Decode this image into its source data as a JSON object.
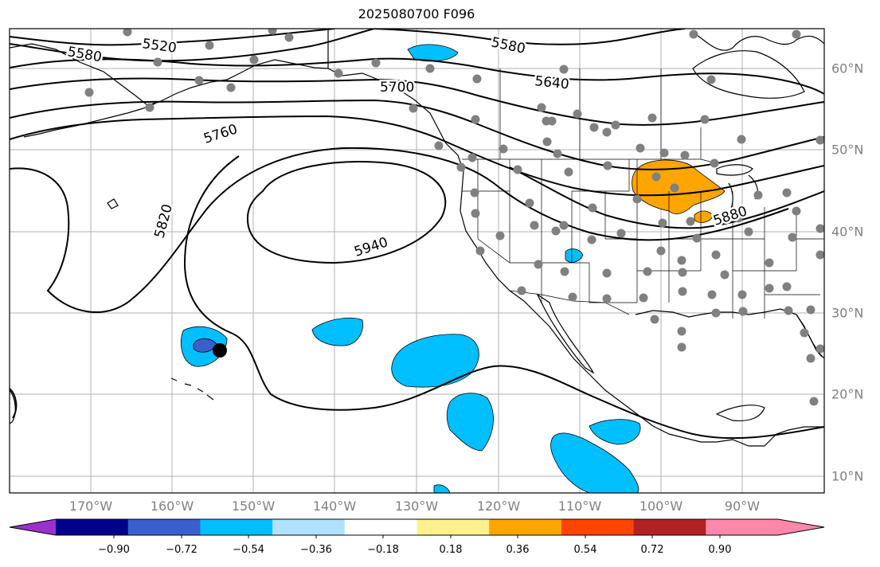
{
  "title": "2025080700 F096",
  "lon_labels": [
    "170°W",
    "160°W",
    "150°W",
    "140°W",
    "130°W",
    "120°W",
    "110°W",
    "100°W",
    "90°W"
  ],
  "lat_labels": [
    "10°N",
    "20°N",
    "30°N",
    "40°N",
    "50°N",
    "60°N"
  ],
  "contour_labels": [
    "5520",
    "5580",
    "5580",
    "5640",
    "5700",
    "5760",
    "5820",
    "5880",
    "5940"
  ],
  "colorbar": {
    "tick_labels": [
      "−0.90",
      "−0.72",
      "−0.54",
      "−0.36",
      "−0.18",
      "0.18",
      "0.36",
      "0.54",
      "0.72",
      "0.90"
    ],
    "colors": [
      "#9932cc",
      "#00008b",
      "#3a5fcd",
      "#00bfff",
      "#b0e2ff",
      "#ffffff",
      "#fff08c",
      "#ffa500",
      "#ff4500",
      "#b22222",
      "#ff88aa",
      "#ff88aa"
    ]
  },
  "colors": {
    "negative_shade": "#00bfff",
    "strong_negative_shade": "#3a5fcd",
    "positive_shade": "#ffa500",
    "station_dot": "#808080",
    "highlight_dot": "#000000",
    "grid": "#a0a0a0",
    "contour": "#000000"
  }
}
